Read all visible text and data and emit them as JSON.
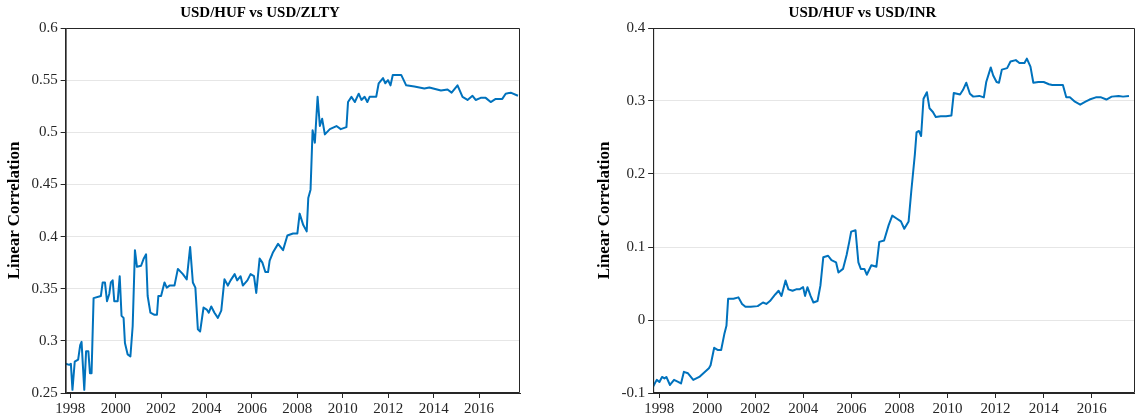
{
  "chart_data": [
    {
      "type": "line",
      "title": "USD/HUF vs USD/ZLTY",
      "ylabel": "Linear Correlation",
      "xlim": [
        1997.8,
        2017.8
      ],
      "xticks": [
        1998,
        2000,
        2002,
        2004,
        2006,
        2008,
        2010,
        2012,
        2014,
        2016
      ],
      "ylim": [
        0.25,
        0.6
      ],
      "yticks": [
        0.25,
        0.3,
        0.35,
        0.4,
        0.45,
        0.5,
        0.55,
        0.6
      ],
      "grid": "y",
      "marker": "none",
      "line_style": "solid",
      "series": [
        {
          "color": "#0072bd",
          "x": [
            1997.8,
            1997.96,
            1998.03,
            1998.1,
            1998.2,
            1998.35,
            1998.44,
            1998.5,
            1998.62,
            1998.7,
            1998.8,
            1998.87,
            1998.94,
            1999.03,
            1999.35,
            1999.43,
            1999.53,
            1999.62,
            1999.72,
            1999.79,
            1999.87,
            1999.94,
            2000.09,
            2000.18,
            2000.26,
            2000.35,
            2000.41,
            2000.53,
            2000.65,
            2000.75,
            2000.85,
            2000.94,
            2001.12,
            2001.24,
            2001.34,
            2001.41,
            2001.53,
            2001.71,
            2001.82,
            2001.88,
            2002.0,
            2002.15,
            2002.25,
            2002.37,
            2002.59,
            2002.74,
            2002.96,
            2003.13,
            2003.28,
            2003.4,
            2003.51,
            2003.62,
            2003.72,
            2003.87,
            2004.01,
            2004.1,
            2004.21,
            2004.35,
            2004.5,
            2004.65,
            2004.79,
            2004.94,
            2005.06,
            2005.24,
            2005.35,
            2005.5,
            2005.6,
            2005.8,
            2005.94,
            2006.09,
            2006.19,
            2006.34,
            2006.46,
            2006.59,
            2006.71,
            2006.78,
            2006.93,
            2007.15,
            2007.37,
            2007.56,
            2007.81,
            2008.0,
            2008.1,
            2008.26,
            2008.41,
            2008.48,
            2008.58,
            2008.67,
            2008.77,
            2008.89,
            2008.99,
            2009.09,
            2009.21,
            2009.43,
            2009.72,
            2009.91,
            2010.16,
            2010.23,
            2010.38,
            2010.53,
            2010.7,
            2010.82,
            2010.96,
            2011.08,
            2011.18,
            2011.47,
            2011.58,
            2011.77,
            2011.87,
            2011.99,
            2012.1,
            2012.2,
            2012.57,
            2012.79,
            2013.15,
            2013.59,
            2013.81,
            2014.32,
            2014.61,
            2014.79,
            2015.05,
            2015.27,
            2015.49,
            2015.71,
            2015.85,
            2016.07,
            2016.29,
            2016.51,
            2016.73,
            2017.02,
            2017.17,
            2017.39,
            2017.71
          ],
          "values": [
            0.278,
            0.277,
            0.278,
            0.253,
            0.28,
            0.282,
            0.296,
            0.299,
            0.253,
            0.29,
            0.29,
            0.269,
            0.269,
            0.341,
            0.343,
            0.356,
            0.356,
            0.338,
            0.345,
            0.356,
            0.358,
            0.338,
            0.338,
            0.362,
            0.324,
            0.322,
            0.298,
            0.287,
            0.285,
            0.314,
            0.387,
            0.371,
            0.372,
            0.379,
            0.383,
            0.343,
            0.327,
            0.325,
            0.325,
            0.343,
            0.343,
            0.356,
            0.351,
            0.353,
            0.353,
            0.369,
            0.364,
            0.359,
            0.39,
            0.356,
            0.351,
            0.311,
            0.309,
            0.332,
            0.33,
            0.327,
            0.333,
            0.327,
            0.322,
            0.329,
            0.359,
            0.353,
            0.358,
            0.364,
            0.358,
            0.362,
            0.353,
            0.358,
            0.364,
            0.362,
            0.346,
            0.379,
            0.375,
            0.366,
            0.366,
            0.377,
            0.385,
            0.393,
            0.387,
            0.401,
            0.403,
            0.403,
            0.422,
            0.411,
            0.405,
            0.437,
            0.445,
            0.502,
            0.49,
            0.534,
            0.506,
            0.513,
            0.498,
            0.503,
            0.506,
            0.503,
            0.505,
            0.529,
            0.534,
            0.529,
            0.537,
            0.531,
            0.534,
            0.529,
            0.534,
            0.534,
            0.547,
            0.552,
            0.547,
            0.55,
            0.545,
            0.555,
            0.555,
            0.545,
            0.544,
            0.542,
            0.543,
            0.54,
            0.541,
            0.538,
            0.545,
            0.534,
            0.531,
            0.535,
            0.531,
            0.533,
            0.533,
            0.529,
            0.532,
            0.532,
            0.537,
            0.538,
            0.535
          ]
        }
      ]
    },
    {
      "type": "line",
      "title": "USD/HUF vs USD/INR",
      "ylabel": "Linear Correlation",
      "xlim": [
        1997.75,
        2017.8
      ],
      "xticks": [
        1998,
        2000,
        2002,
        2004,
        2006,
        2008,
        2010,
        2012,
        2014,
        2016
      ],
      "ylim": [
        -0.1,
        0.4
      ],
      "yticks": [
        -0.1,
        0,
        0.1,
        0.2,
        0.3,
        0.4
      ],
      "grid": "y",
      "marker": "none",
      "line_style": "solid",
      "series": [
        {
          "color": "#0072bd",
          "x": [
            1997.75,
            1997.9,
            1998.01,
            1998.12,
            1998.22,
            1998.3,
            1998.45,
            1998.62,
            1998.81,
            1998.91,
            1999.03,
            1999.2,
            1999.42,
            1999.67,
            2000.07,
            2000.14,
            2000.29,
            2000.43,
            2000.58,
            2000.72,
            2000.8,
            2000.87,
            2001.09,
            2001.3,
            2001.45,
            2001.59,
            2001.81,
            2002.1,
            2002.32,
            2002.46,
            2002.61,
            2002.83,
            2002.97,
            2003.09,
            2003.26,
            2003.38,
            2003.55,
            2003.7,
            2003.84,
            2003.99,
            2004.07,
            2004.17,
            2004.3,
            2004.42,
            2004.59,
            2004.71,
            2004.83,
            2005.03,
            2005.17,
            2005.36,
            2005.46,
            2005.65,
            2005.8,
            2005.91,
            2005.99,
            2006.17,
            2006.29,
            2006.39,
            2006.54,
            2006.64,
            2006.83,
            2007.04,
            2007.16,
            2007.36,
            2007.55,
            2007.7,
            2007.88,
            2008.06,
            2008.2,
            2008.38,
            2008.49,
            2008.64,
            2008.71,
            2008.81,
            2008.9,
            2009.0,
            2009.14,
            2009.25,
            2009.39,
            2009.51,
            2009.72,
            2009.94,
            2010.16,
            2010.26,
            2010.52,
            2010.64,
            2010.78,
            2010.93,
            2011.07,
            2011.32,
            2011.51,
            2011.61,
            2011.8,
            2011.9,
            2012.04,
            2012.14,
            2012.26,
            2012.48,
            2012.62,
            2012.84,
            2012.99,
            2013.2,
            2013.3,
            2013.45,
            2013.57,
            2013.78,
            2014.0,
            2014.22,
            2014.36,
            2014.8,
            2014.94,
            2015.09,
            2015.3,
            2015.52,
            2015.74,
            2015.91,
            2016.17,
            2016.39,
            2016.61,
            2016.83,
            2017.12,
            2017.3,
            2017.55
          ],
          "values": [
            -0.091,
            -0.082,
            -0.085,
            -0.078,
            -0.08,
            -0.078,
            -0.089,
            -0.082,
            -0.085,
            -0.087,
            -0.071,
            -0.073,
            -0.082,
            -0.078,
            -0.066,
            -0.062,
            -0.038,
            -0.041,
            -0.041,
            -0.018,
            -0.008,
            0.029,
            0.029,
            0.031,
            0.022,
            0.018,
            0.018,
            0.019,
            0.024,
            0.022,
            0.026,
            0.035,
            0.04,
            0.033,
            0.054,
            0.042,
            0.04,
            0.042,
            0.042,
            0.045,
            0.033,
            0.045,
            0.033,
            0.024,
            0.026,
            0.047,
            0.086,
            0.088,
            0.082,
            0.079,
            0.065,
            0.07,
            0.089,
            0.107,
            0.121,
            0.123,
            0.079,
            0.07,
            0.07,
            0.062,
            0.075,
            0.073,
            0.107,
            0.109,
            0.13,
            0.143,
            0.139,
            0.135,
            0.125,
            0.135,
            0.176,
            0.227,
            0.257,
            0.259,
            0.252,
            0.303,
            0.312,
            0.29,
            0.285,
            0.278,
            0.279,
            0.279,
            0.28,
            0.311,
            0.309,
            0.315,
            0.325,
            0.31,
            0.306,
            0.307,
            0.305,
            0.326,
            0.346,
            0.335,
            0.326,
            0.325,
            0.343,
            0.345,
            0.354,
            0.356,
            0.352,
            0.352,
            0.358,
            0.347,
            0.325,
            0.326,
            0.326,
            0.323,
            0.322,
            0.322,
            0.305,
            0.305,
            0.299,
            0.295,
            0.299,
            0.302,
            0.305,
            0.305,
            0.302,
            0.306,
            0.307,
            0.306,
            0.307
          ]
        }
      ]
    }
  ]
}
